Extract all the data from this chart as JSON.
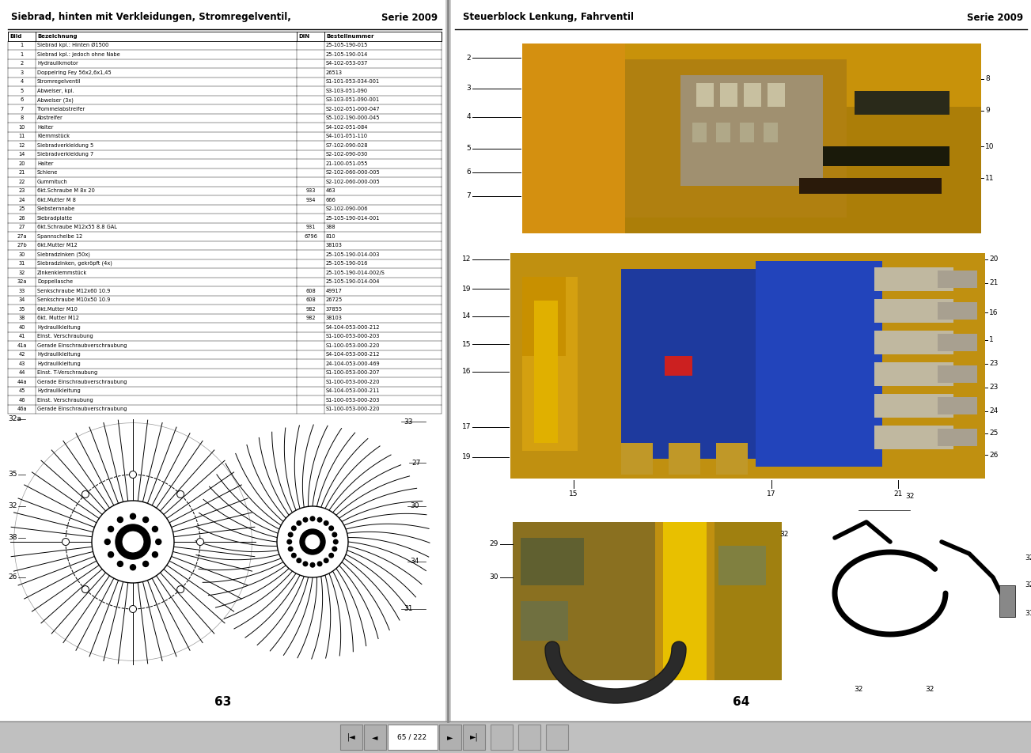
{
  "page_bg": "#f0f0f0",
  "left_title": "Siebrad, hinten mit Verkleidungen, Stromregelventil,",
  "left_serie": "Serie 2009",
  "right_title": "Steuerblock Lenkung, Fahrventil",
  "right_serie": "Serie 2009",
  "left_page_num": "63",
  "right_page_num": "64",
  "table_headers": [
    "Bild",
    "Bezeichnung",
    "DIN",
    "Bestellnummer"
  ],
  "table_rows": [
    [
      "1",
      "Siebrad kpl.: Hinten Ø1500",
      "",
      "25-105-190-015"
    ],
    [
      "1",
      "Siebrad kpl.: jedoch ohne Nabe",
      "",
      "25-105-190-014"
    ],
    [
      "2",
      "Hydraulikmotor",
      "",
      "S4-102-053-037"
    ],
    [
      "3",
      "Doppelring Fey 56x2,6x1,45",
      "",
      "26513"
    ],
    [
      "4",
      "Stromregelventil",
      "",
      "S1-101-053-034-001"
    ],
    [
      "5",
      "Abweiser, kpl.",
      "",
      "S3-103-051-090"
    ],
    [
      "6",
      "Abweiser (3x)",
      "",
      "S3-103-051-090-001"
    ],
    [
      "7",
      "Trommelabstreifer",
      "",
      "S2-102-051-000-047"
    ],
    [
      "8",
      "Abstreifer",
      "",
      "S5-102-190-000-045"
    ],
    [
      "10",
      "Halter",
      "",
      "S4-102-051-084"
    ],
    [
      "11",
      "Klemmstück",
      "",
      "S4-101-051-110"
    ],
    [
      "12",
      "Siebradverkleidung 5",
      "",
      "S7-102-090-028"
    ],
    [
      "14",
      "Siebradverkleidung 7",
      "",
      "S2-102-090-030"
    ],
    [
      "20",
      "Halter",
      "",
      "21-100-051-055"
    ],
    [
      "21",
      "Schiene",
      "",
      "S2-102-060-000-005"
    ],
    [
      "22",
      "Gummituch",
      "",
      "S2-102-060-000-005"
    ],
    [
      "23",
      "6kt.Schraube M 8x 20",
      "933",
      "463"
    ],
    [
      "24",
      "6kt.Mutter M 8",
      "934",
      "666"
    ],
    [
      "25",
      "Siebsternnabe",
      "",
      "S2-102-090-006"
    ],
    [
      "26",
      "Siebradplatte",
      "",
      "25-105-190-014-001"
    ],
    [
      "27",
      "6kt.Schraube M12x55 8.8 GAL",
      "931",
      "388"
    ],
    [
      "27a",
      "Spannscheibe 12",
      "6796",
      "810"
    ],
    [
      "27b",
      "6kt.Mutter M12",
      "",
      "38103"
    ],
    [
      "30",
      "Siebradzinken (50x)",
      "",
      "25-105-190-014-003"
    ],
    [
      "31",
      "Siebradzinken, gekröpft (4x)",
      "",
      "25-105-190-016"
    ],
    [
      "32",
      "Zinkenklemmstück",
      "",
      "25-105-190-014-002/S"
    ],
    [
      "32a",
      "Doppellasche",
      "",
      "25-105-190-014-004"
    ],
    [
      "33",
      "Senkschraube M12x60 10.9",
      "608",
      "49917"
    ],
    [
      "34",
      "Senkschraube M10x50 10.9",
      "608",
      "26725"
    ],
    [
      "35",
      "6kt.Mutter M10",
      "982",
      "37855"
    ],
    [
      "38",
      "6kt. Mutter M12",
      "982",
      "38103"
    ],
    [
      "40",
      "Hydraulikleitung",
      "",
      "S4-104-053-000-212"
    ],
    [
      "41",
      "Einst. Verschraubung",
      "",
      "S1-100-053-000-203"
    ],
    [
      "41a",
      "Gerade Einschraubverschraubung",
      "",
      "S1-100-053-000-220"
    ],
    [
      "42",
      "Hydraulikleitung",
      "",
      "S4-104-053-000-212"
    ],
    [
      "43",
      "Hydraulikleitung",
      "",
      "24-104-053-000-469"
    ],
    [
      "44",
      "Einst. T-Verschraubung",
      "",
      "S1-100-053-000-207"
    ],
    [
      "44a",
      "Gerade Einschraubverschraubung",
      "",
      "S1-100-053-000-220"
    ],
    [
      "45",
      "Hydraulikleitung",
      "",
      "S4-104-053-000-211"
    ],
    [
      "46",
      "Einst. Verschraubung",
      "",
      "S1-100-053-000-203"
    ],
    [
      "46a",
      "Gerade Einschraubverschraubung",
      "",
      "S1-100-053-000-220"
    ]
  ],
  "bottom_text": "65 / 222"
}
